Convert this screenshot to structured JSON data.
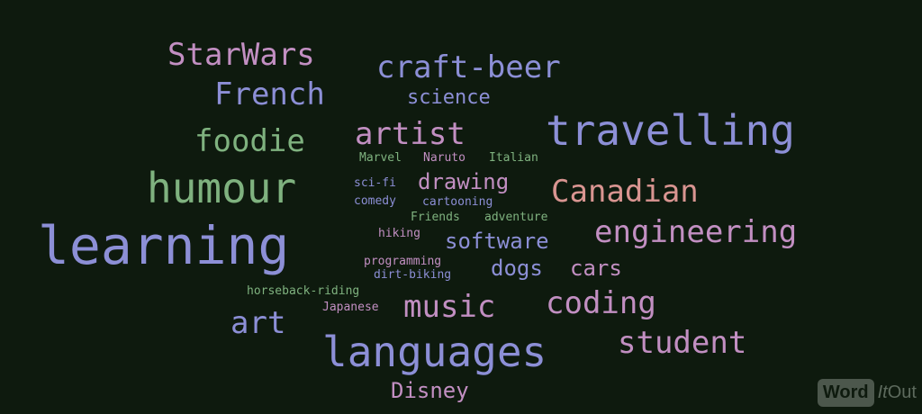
{
  "colors": {
    "background": "#0e1a0e",
    "pink": "#c28fc2",
    "blue": "#8c8fd6",
    "green": "#7fb27f",
    "salmon": "#d99591",
    "teal": "#5e8f8e"
  },
  "words": [
    {
      "text": "StarWars",
      "color": "pink"
    },
    {
      "text": "craft-beer",
      "color": "blue"
    },
    {
      "text": "French",
      "color": "blue"
    },
    {
      "text": "science",
      "color": "blue"
    },
    {
      "text": "travelling",
      "color": "blue"
    },
    {
      "text": "artist",
      "color": "pink"
    },
    {
      "text": "foodie",
      "color": "green"
    },
    {
      "text": "Marvel",
      "color": "green"
    },
    {
      "text": "Naruto",
      "color": "pink"
    },
    {
      "text": "Italian",
      "color": "green"
    },
    {
      "text": "drawing",
      "color": "pink"
    },
    {
      "text": "Canadian",
      "color": "salmon"
    },
    {
      "text": "humour",
      "color": "green"
    },
    {
      "text": "sci-fi",
      "color": "blue"
    },
    {
      "text": "comedy",
      "color": "blue"
    },
    {
      "text": "cartooning",
      "color": "blue"
    },
    {
      "text": "Friends",
      "color": "green"
    },
    {
      "text": "adventure",
      "color": "green"
    },
    {
      "text": "engineering",
      "color": "pink"
    },
    {
      "text": "learning",
      "color": "blue"
    },
    {
      "text": "hiking",
      "color": "pink"
    },
    {
      "text": "software",
      "color": "blue"
    },
    {
      "text": "programming",
      "color": "pink"
    },
    {
      "text": "dirt-biking",
      "color": "blue"
    },
    {
      "text": "dogs",
      "color": "blue"
    },
    {
      "text": "cars",
      "color": "pink"
    },
    {
      "text": "horseback-riding",
      "color": "green"
    },
    {
      "text": "Japanese",
      "color": "pink"
    },
    {
      "text": "music",
      "color": "pink"
    },
    {
      "text": "coding",
      "color": "pink"
    },
    {
      "text": "art",
      "color": "blue"
    },
    {
      "text": "languages",
      "color": "blue"
    },
    {
      "text": "student",
      "color": "pink"
    },
    {
      "text": "Disney",
      "color": "pink"
    }
  ],
  "logo": {
    "word": "Word",
    "it": "It",
    "out": "Out"
  }
}
